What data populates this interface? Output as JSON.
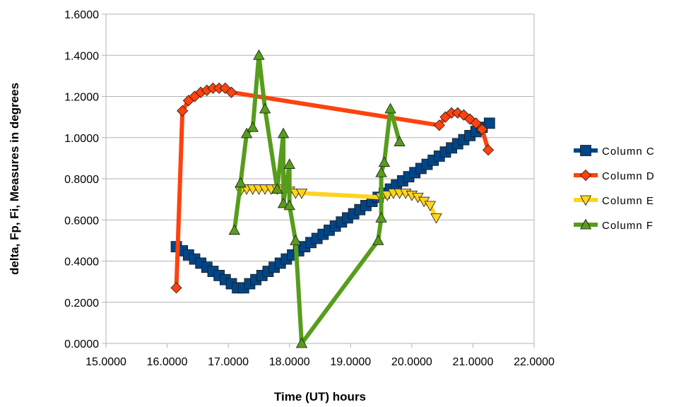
{
  "chart_data": {
    "type": "line",
    "xlabel": "Time (UT) hours",
    "ylabel": "delta, Fp, Fi, Measures in degrees",
    "xlim": [
      15,
      22
    ],
    "ylim": [
      0,
      1.6
    ],
    "x_ticks": [
      {
        "value": 15,
        "label": "15.0000"
      },
      {
        "value": 16,
        "label": "16.0000"
      },
      {
        "value": 17,
        "label": "17.0000"
      },
      {
        "value": 18,
        "label": "18.0000"
      },
      {
        "value": 19,
        "label": "19.0000"
      },
      {
        "value": 20,
        "label": "20.0000"
      },
      {
        "value": 21,
        "label": "21.0000"
      },
      {
        "value": 22,
        "label": "22.0000"
      }
    ],
    "y_ticks": [
      {
        "value": 0,
        "label": "0.0000"
      },
      {
        "value": 0.2,
        "label": "0.2000"
      },
      {
        "value": 0.4,
        "label": "0.4000"
      },
      {
        "value": 0.6,
        "label": "0.6000"
      },
      {
        "value": 0.8,
        "label": "0.8000"
      },
      {
        "value": 1.0,
        "label": "1.0000"
      },
      {
        "value": 1.2,
        "label": "1.2000"
      },
      {
        "value": 1.4,
        "label": "1.4000"
      },
      {
        "value": 1.6,
        "label": "1.6000"
      }
    ],
    "grid": "horizontal",
    "legend_position": "right",
    "series": [
      {
        "name": "Column C",
        "color": "#004586",
        "marker": "square",
        "points": [
          [
            16.15,
            0.47
          ],
          [
            16.25,
            0.45
          ],
          [
            16.35,
            0.43
          ],
          [
            16.45,
            0.41
          ],
          [
            16.55,
            0.39
          ],
          [
            16.65,
            0.37
          ],
          [
            16.75,
            0.35
          ],
          [
            16.85,
            0.33
          ],
          [
            16.95,
            0.31
          ],
          [
            17.05,
            0.29
          ],
          [
            17.15,
            0.27
          ],
          [
            17.25,
            0.27
          ],
          [
            17.35,
            0.29
          ],
          [
            17.45,
            0.31
          ],
          [
            17.55,
            0.33
          ],
          [
            17.65,
            0.35
          ],
          [
            17.75,
            0.37
          ],
          [
            17.85,
            0.39
          ],
          [
            17.95,
            0.41
          ],
          [
            18.05,
            0.43
          ],
          [
            18.15,
            0.45
          ],
          [
            18.25,
            0.47
          ],
          [
            18.35,
            0.49
          ],
          [
            18.45,
            0.51
          ],
          [
            18.55,
            0.53
          ],
          [
            18.65,
            0.55
          ],
          [
            18.75,
            0.57
          ],
          [
            18.85,
            0.59
          ],
          [
            18.95,
            0.61
          ],
          [
            19.05,
            0.63
          ],
          [
            19.15,
            0.65
          ],
          [
            19.25,
            0.67
          ],
          [
            19.35,
            0.69
          ],
          [
            19.45,
            0.71
          ],
          [
            19.55,
            0.73
          ],
          [
            19.65,
            0.75
          ],
          [
            19.75,
            0.77
          ],
          [
            19.85,
            0.79
          ],
          [
            19.95,
            0.81
          ],
          [
            20.05,
            0.83
          ],
          [
            20.15,
            0.85
          ],
          [
            20.25,
            0.87
          ],
          [
            20.35,
            0.89
          ],
          [
            20.45,
            0.91
          ],
          [
            20.55,
            0.93
          ],
          [
            20.65,
            0.95
          ],
          [
            20.75,
            0.97
          ],
          [
            20.85,
            0.99
          ],
          [
            20.95,
            1.01
          ],
          [
            21.05,
            1.03
          ],
          [
            21.15,
            1.05
          ],
          [
            21.27,
            1.07
          ]
        ]
      },
      {
        "name": "Column D",
        "color": "#ff420e",
        "marker": "diamond",
        "points": [
          [
            16.15,
            0.27
          ],
          [
            16.25,
            1.13
          ],
          [
            16.35,
            1.18
          ],
          [
            16.45,
            1.2
          ],
          [
            16.55,
            1.22
          ],
          [
            16.65,
            1.23
          ],
          [
            16.75,
            1.24
          ],
          [
            16.85,
            1.24
          ],
          [
            16.95,
            1.24
          ],
          [
            17.05,
            1.22
          ],
          [
            20.45,
            1.06
          ],
          [
            20.55,
            1.1
          ],
          [
            20.65,
            1.12
          ],
          [
            20.75,
            1.12
          ],
          [
            20.85,
            1.11
          ],
          [
            20.95,
            1.09
          ],
          [
            21.05,
            1.07
          ],
          [
            21.15,
            1.04
          ],
          [
            21.25,
            0.94
          ]
        ]
      },
      {
        "name": "Column E",
        "color": "#ffd320",
        "marker": "triangle-down",
        "points": [
          [
            17.2,
            0.74
          ],
          [
            17.3,
            0.75
          ],
          [
            17.4,
            0.75
          ],
          [
            17.5,
            0.75
          ],
          [
            17.6,
            0.75
          ],
          [
            17.7,
            0.75
          ],
          [
            17.8,
            0.75
          ],
          [
            17.9,
            0.74
          ],
          [
            18.0,
            0.74
          ],
          [
            18.1,
            0.73
          ],
          [
            18.2,
            0.73
          ],
          [
            19.5,
            0.71
          ],
          [
            19.6,
            0.72
          ],
          [
            19.7,
            0.73
          ],
          [
            19.8,
            0.73
          ],
          [
            19.9,
            0.73
          ],
          [
            20.0,
            0.72
          ],
          [
            20.1,
            0.71
          ],
          [
            20.2,
            0.69
          ],
          [
            20.3,
            0.67
          ],
          [
            20.4,
            0.61
          ]
        ]
      },
      {
        "name": "Column F",
        "color": "#579d1c",
        "marker": "triangle-up",
        "points": [
          [
            17.1,
            0.55
          ],
          [
            17.2,
            0.78
          ],
          [
            17.3,
            1.02
          ],
          [
            17.4,
            1.05
          ],
          [
            17.5,
            1.4
          ],
          [
            17.6,
            1.14
          ],
          [
            17.8,
            0.75
          ],
          [
            17.9,
            1.02
          ],
          [
            17.9,
            0.68
          ],
          [
            18.0,
            0.87
          ],
          [
            18.0,
            0.67
          ],
          [
            18.1,
            0.5
          ],
          [
            18.2,
            0.0
          ],
          [
            19.45,
            0.5
          ],
          [
            19.5,
            0.61
          ],
          [
            19.5,
            0.83
          ],
          [
            19.55,
            0.88
          ],
          [
            19.65,
            1.14
          ],
          [
            19.8,
            0.98
          ]
        ]
      }
    ]
  }
}
